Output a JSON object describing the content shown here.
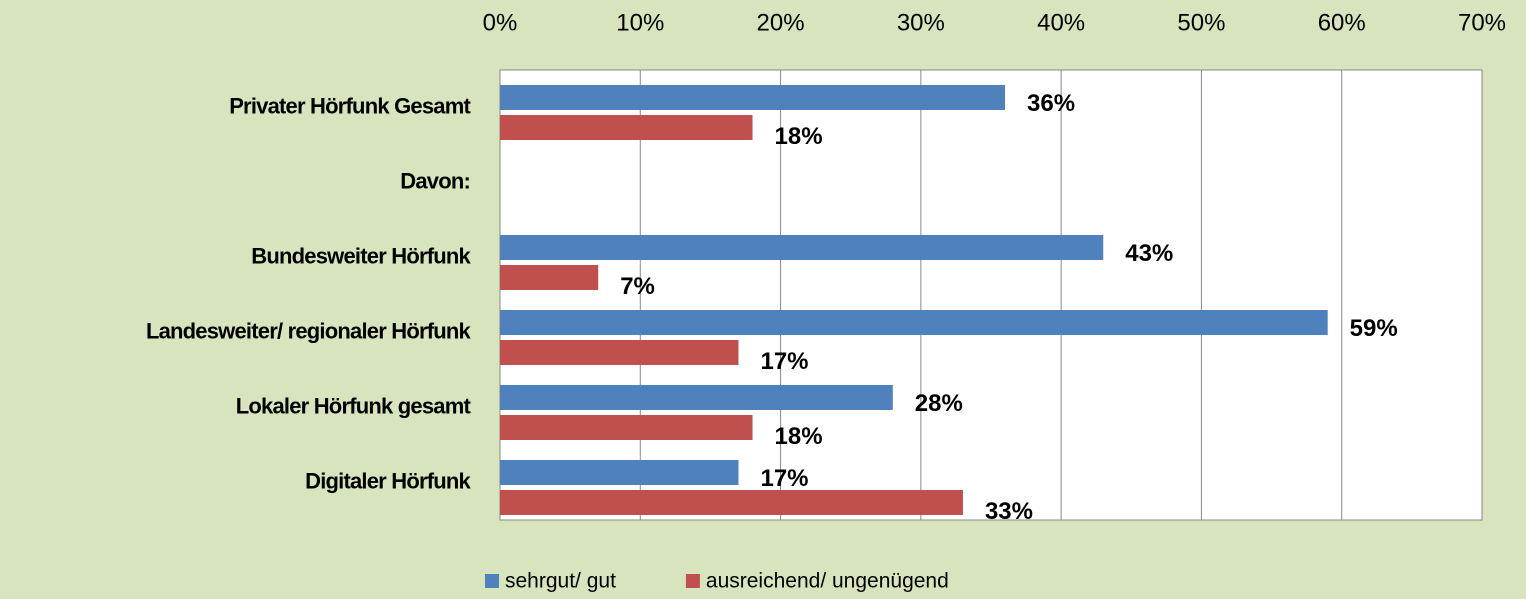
{
  "chart_data": {
    "type": "barh",
    "categories": [
      "Privater Hörfunk Gesamt",
      "Davon:",
      "Bundesweiter Hörfunk",
      "Landesweiter/ regionaler Hörfunk",
      "Lokaler Hörfunk gesamt",
      "Digitaler Hörfunk"
    ],
    "series": [
      {
        "name": "sehrgut/ gut",
        "color": "#4f81bd",
        "values": [
          36,
          null,
          43,
          59,
          28,
          17
        ],
        "value_labels": [
          "36%",
          null,
          "43%",
          "59%",
          "28%",
          "17%"
        ]
      },
      {
        "name": "ausreichend/ ungenügend",
        "color": "#c0504d",
        "values": [
          18,
          null,
          7,
          17,
          18,
          33
        ],
        "value_labels": [
          "18%",
          null,
          "7%",
          "17%",
          "18%",
          "33%"
        ]
      }
    ],
    "xlim": [
      0,
      70
    ],
    "xticks": [
      {
        "value": 0,
        "label": "0%"
      },
      {
        "value": 10,
        "label": "10%"
      },
      {
        "value": 20,
        "label": "20%"
      },
      {
        "value": 30,
        "label": "30%"
      },
      {
        "value": 40,
        "label": "40%"
      },
      {
        "value": 50,
        "label": "50%"
      },
      {
        "value": 60,
        "label": "60%"
      },
      {
        "value": 70,
        "label": "70%"
      }
    ],
    "grid": true,
    "legend": "bottom"
  }
}
